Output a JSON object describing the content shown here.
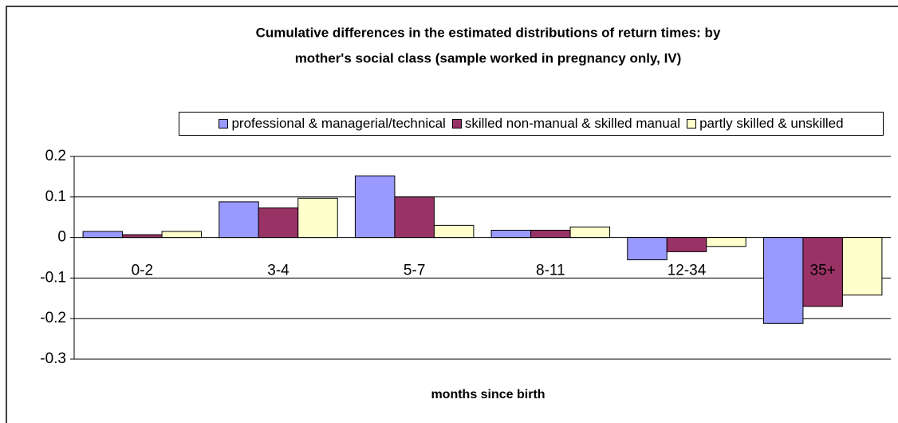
{
  "chart_data": {
    "type": "bar",
    "title": [
      "Cumulative differences in the estimated distributions of return times: by",
      "mother's social class (sample worked in pregnancy only, IV)"
    ],
    "x_label": "months since birth",
    "categories": [
      "0-2",
      "3-4",
      "5-7",
      "8-11",
      "12-34",
      "35+"
    ],
    "series": [
      {
        "name": "professional & managerial/technical",
        "color": "#9999ff",
        "values": [
          0.015,
          0.088,
          0.152,
          0.018,
          -0.055,
          -0.212
        ]
      },
      {
        "name": "skilled non-manual & skilled manual",
        "color": "#993366",
        "values": [
          0.007,
          0.073,
          0.1,
          0.018,
          -0.035,
          -0.17
        ]
      },
      {
        "name": "partly skilled & unskilled",
        "color": "#ffffcc",
        "values": [
          0.015,
          0.097,
          0.03,
          0.026,
          -0.022,
          -0.142
        ]
      }
    ],
    "ylim": [
      -0.3,
      0.2
    ],
    "yticks": [
      0.2,
      0.1,
      0,
      -0.1,
      -0.2,
      -0.3
    ],
    "grid": true,
    "legend": "top"
  }
}
